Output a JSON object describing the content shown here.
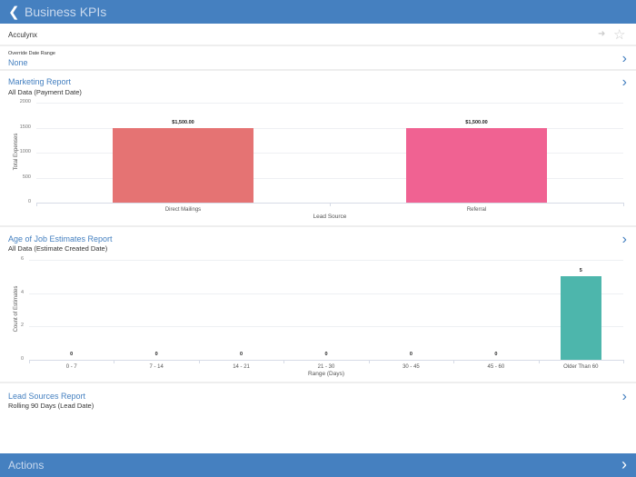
{
  "header": {
    "title": "Business KPIs",
    "back_icon": "chevron-left-icon"
  },
  "company": {
    "name": "Acculynx",
    "icons": [
      "pin-icon",
      "star-icon"
    ]
  },
  "override": {
    "label": "Override Date Range",
    "value": "None"
  },
  "marketing": {
    "title": "Marketing Report",
    "subtitle": "All Data (Payment Date)"
  },
  "age": {
    "title": "Age of Job Estimates Report",
    "subtitle": "All Data (Estimate Created Date)"
  },
  "lead": {
    "title": "Lead Sources Report",
    "subtitle": "Rolling 90 Days (Lead Date)"
  },
  "actions": {
    "label": "Actions"
  },
  "colors": {
    "accent": "#4580c0"
  },
  "chart_data": [
    {
      "type": "bar",
      "categories": [
        "Direct Mailings",
        "Referral"
      ],
      "values": [
        1500,
        1500
      ],
      "data_labels": [
        "$1,500.00",
        "$1,500.00"
      ],
      "colors": [
        "#e57373",
        "#f06292"
      ],
      "xlabel": "Lead Source",
      "ylabel": "Total Expenses",
      "ylim": [
        0,
        2000
      ],
      "yticks": [
        "0",
        "500",
        "1000",
        "1500",
        "2000"
      ],
      "grid": true
    },
    {
      "type": "bar",
      "categories": [
        "0 - 7",
        "7 - 14",
        "14 - 21",
        "21 - 30",
        "30 - 45",
        "45 - 60",
        "Older Than 60"
      ],
      "values": [
        0,
        0,
        0,
        0,
        0,
        0,
        5
      ],
      "data_labels": [
        "0",
        "0",
        "0",
        "0",
        "0",
        "0",
        "5"
      ],
      "colors": [
        "#4db6ac"
      ],
      "xlabel": "Range (Days)",
      "ylabel": "Count of Estimates",
      "ylim": [
        0,
        6
      ],
      "yticks": [
        "0",
        "2",
        "4",
        "6"
      ],
      "grid": true
    }
  ]
}
